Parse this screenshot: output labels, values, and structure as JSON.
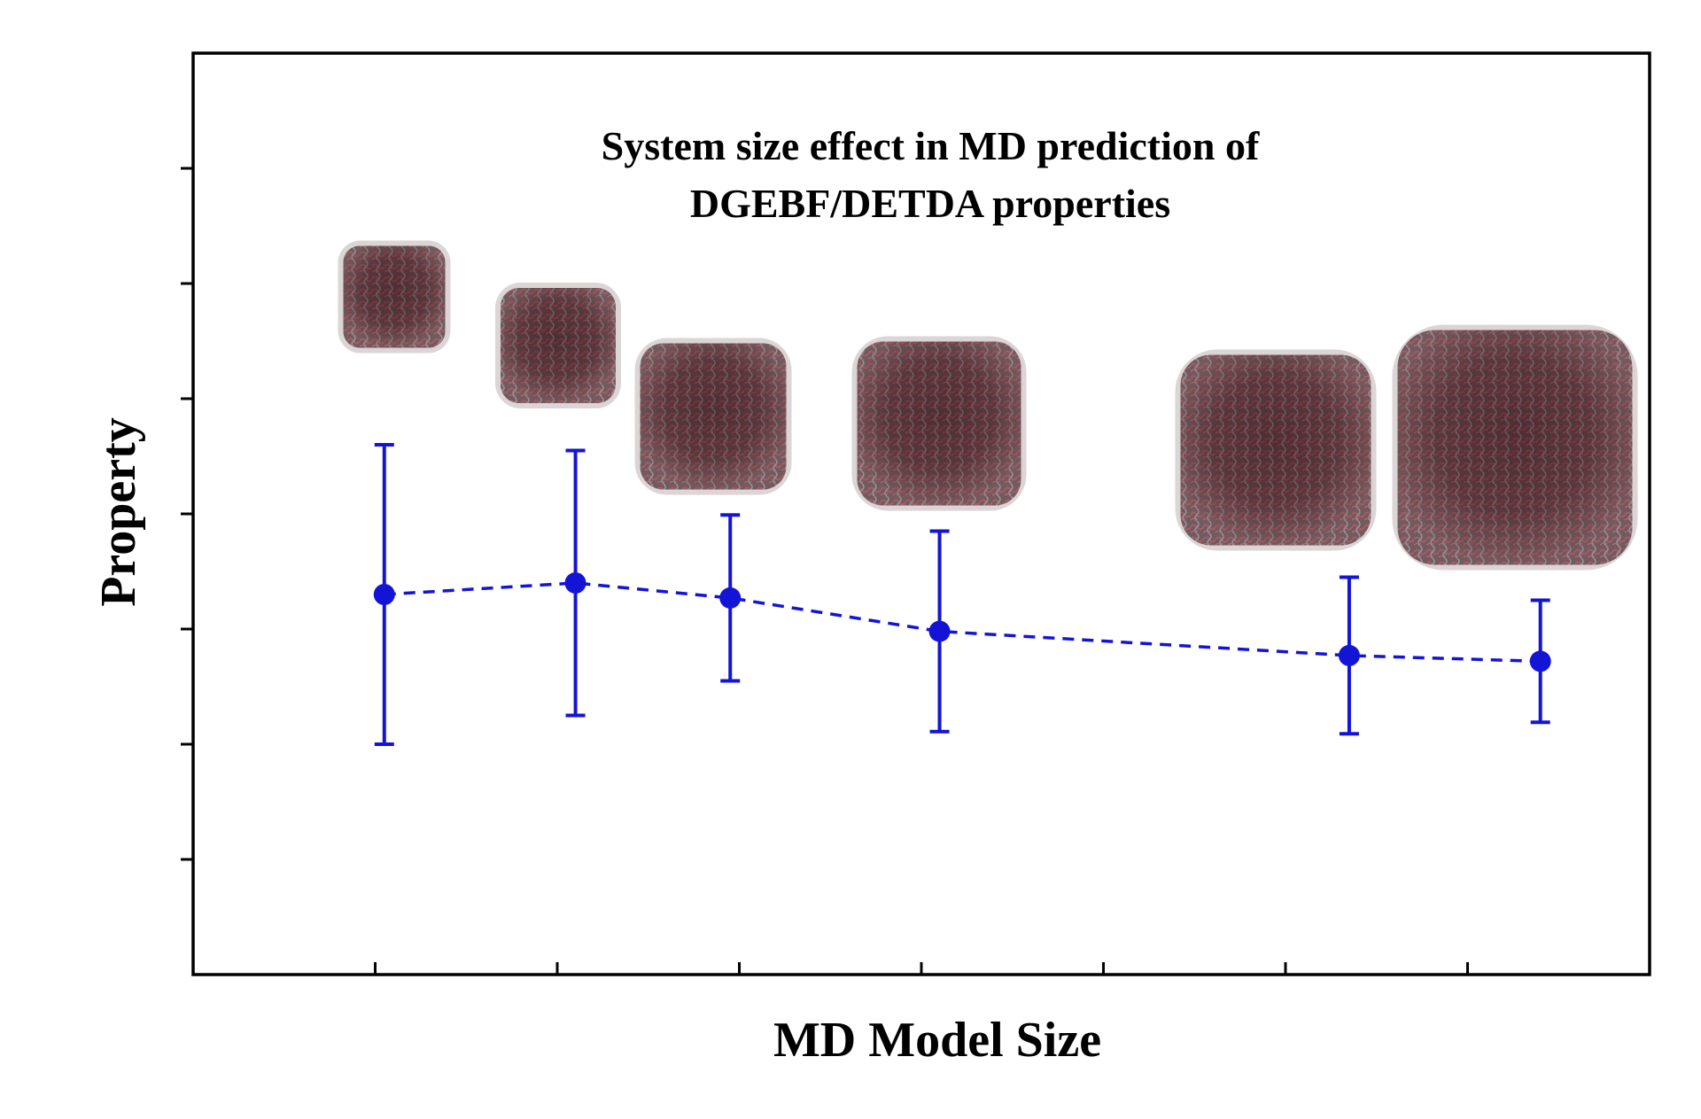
{
  "chart_data": {
    "type": "scatter",
    "title_lines": [
      "System size effect in MD prediction of",
      "DGEBF/DETDA properties"
    ],
    "xlabel": "MD Model Size",
    "ylabel": "Property",
    "x_ticks": [
      1,
      2,
      3,
      4,
      5,
      6,
      7
    ],
    "y_ticks": [
      1,
      2,
      3,
      4,
      5,
      6,
      7
    ],
    "xlim": [
      0,
      8
    ],
    "ylim": [
      0,
      8
    ],
    "grid": false,
    "legend": "none",
    "series": [
      {
        "x": [
          1.05,
          2.1,
          2.95,
          4.1,
          6.35,
          7.4
        ],
        "y": [
          3.3,
          3.4,
          3.27,
          2.98,
          2.77,
          2.72
        ],
        "err_low": [
          1.3,
          1.15,
          0.72,
          0.87,
          0.68,
          0.53
        ],
        "err_high": [
          1.3,
          1.15,
          0.72,
          0.87,
          0.68,
          0.53
        ],
        "color": "#1414d6",
        "line": "dashed"
      }
    ],
    "model_images": [
      {
        "name": "model-cube-1",
        "description": "molecular network cube"
      },
      {
        "name": "model-cube-2",
        "description": "molecular network cube"
      },
      {
        "name": "model-cube-3",
        "description": "molecular network cube"
      },
      {
        "name": "model-cube-4",
        "description": "molecular network cube"
      },
      {
        "name": "model-cube-5",
        "description": "molecular network cube"
      },
      {
        "name": "model-cube-6",
        "description": "molecular network cube"
      }
    ]
  }
}
